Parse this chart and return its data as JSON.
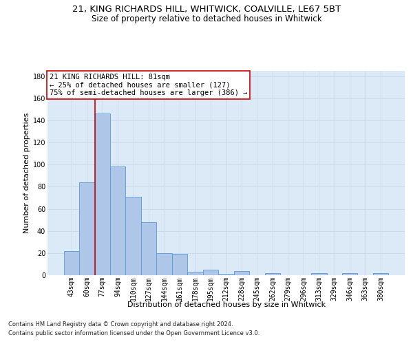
{
  "title1": "21, KING RICHARDS HILL, WHITWICK, COALVILLE, LE67 5BT",
  "title2": "Size of property relative to detached houses in Whitwick",
  "xlabel": "Distribution of detached houses by size in Whitwick",
  "ylabel": "Number of detached properties",
  "bar_labels": [
    "43sqm",
    "60sqm",
    "77sqm",
    "94sqm",
    "110sqm",
    "127sqm",
    "144sqm",
    "161sqm",
    "178sqm",
    "195sqm",
    "212sqm",
    "228sqm",
    "245sqm",
    "262sqm",
    "279sqm",
    "296sqm",
    "313sqm",
    "329sqm",
    "346sqm",
    "363sqm",
    "380sqm"
  ],
  "bar_values": [
    22,
    84,
    146,
    98,
    71,
    48,
    20,
    19,
    3,
    5,
    1,
    4,
    0,
    2,
    0,
    0,
    2,
    0,
    2,
    0,
    2
  ],
  "bar_color": "#aec6e8",
  "bar_edgecolor": "#5b9bd5",
  "vline_x_index": 2,
  "vline_color": "#cc0000",
  "annotation_line1": "21 KING RICHARDS HILL: 81sqm",
  "annotation_line2": "← 25% of detached houses are smaller (127)",
  "annotation_line3": "75% of semi-detached houses are larger (386) →",
  "annotation_box_facecolor": "#ffffff",
  "annotation_box_edgecolor": "#cc0000",
  "ylim": [
    0,
    185
  ],
  "yticks": [
    0,
    20,
    40,
    60,
    80,
    100,
    120,
    140,
    160,
    180
  ],
  "plot_bg_color": "#dce9f7",
  "grid_color": "#c8d8e8",
  "footer_line1": "Contains HM Land Registry data © Crown copyright and database right 2024.",
  "footer_line2": "Contains public sector information licensed under the Open Government Licence v3.0.",
  "title1_fontsize": 9.5,
  "title2_fontsize": 8.5,
  "ylabel_fontsize": 8,
  "xlabel_fontsize": 8,
  "tick_fontsize": 7,
  "annotation_fontsize": 7.5,
  "footer_fontsize": 6
}
